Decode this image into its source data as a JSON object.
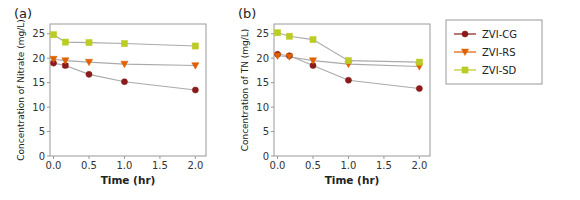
{
  "chart_data": [
    {
      "type": "line",
      "title": "(a)",
      "xlabel": "Time (hr)",
      "ylabel": "Concentration of Nitrate (mg/L)",
      "x": [
        0.0,
        0.167,
        0.5,
        1.0,
        2.0
      ],
      "series": [
        {
          "name": "ZVI-CG",
          "color": "#8B1A1A",
          "marker": "circle",
          "line_style": "solid",
          "values": [
            19.0,
            18.5,
            16.7,
            15.2,
            13.5
          ],
          "errors": [
            null,
            0.4,
            null,
            null,
            null
          ]
        },
        {
          "name": "ZVI-RS",
          "color": "#E06000",
          "marker": "triangle-down",
          "line_style": "solid",
          "values": [
            19.8,
            19.5,
            19.2,
            18.8,
            18.5
          ]
        },
        {
          "name": "ZVI-SD",
          "color": "#BBCC22",
          "marker": "square",
          "line_style": "solid",
          "values": [
            24.8,
            23.3,
            23.2,
            23.0,
            22.5
          ]
        }
      ],
      "xlim": [
        -0.05,
        2.15
      ],
      "ylim": [
        0,
        27
      ],
      "xticks": [
        {
          "value": 0.0,
          "label": "0.0"
        },
        0.5,
        {
          "value": 1.0,
          "label": "1.0"
        },
        1.5,
        {
          "value": 2.0,
          "label": "2.0"
        }
      ],
      "yticks": [
        0,
        5,
        10,
        15,
        20,
        25
      ],
      "grid": false
    },
    {
      "type": "line",
      "title": "(b)",
      "xlabel": "Time (hr)",
      "ylabel": "Concentration of TN (mg/L)",
      "x": [
        0.0,
        0.167,
        0.5,
        1.0,
        2.0
      ],
      "series": [
        {
          "name": "ZVI-CG",
          "color": "#8B1A1A",
          "marker": "circle",
          "line_style": "solid",
          "values": [
            20.8,
            20.5,
            18.5,
            15.5,
            13.8
          ]
        },
        {
          "name": "ZVI-RS",
          "color": "#E06000",
          "marker": "triangle-down",
          "line_style": "solid",
          "values": [
            20.5,
            20.3,
            19.5,
            18.8,
            18.3
          ]
        },
        {
          "name": "ZVI-SD",
          "color": "#BBCC22",
          "marker": "square",
          "line_style": "solid",
          "values": [
            25.2,
            24.5,
            23.8,
            19.5,
            19.2
          ]
        }
      ],
      "xlim": [
        -0.05,
        2.15
      ],
      "ylim": [
        0,
        27
      ],
      "xticks": [
        {
          "value": 0.0,
          "label": "0.0"
        },
        0.5,
        {
          "value": 1.0,
          "label": "1.0"
        },
        1.5,
        {
          "value": 2.0,
          "label": "2.0"
        }
      ],
      "yticks": [
        0,
        5,
        10,
        15,
        20,
        25
      ],
      "grid": false,
      "legend": "right"
    }
  ]
}
